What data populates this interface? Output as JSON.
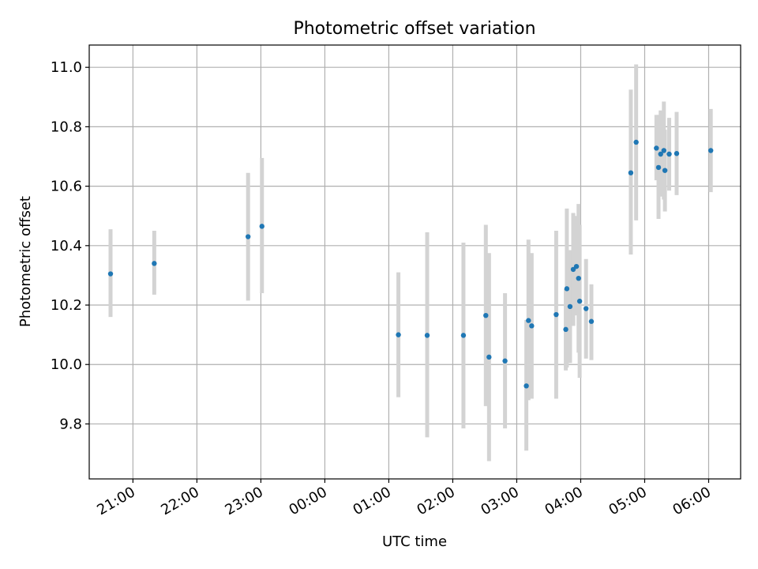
{
  "chart_data": {
    "type": "scatter",
    "title": "Photometric offset variation",
    "xlabel": "UTC time",
    "ylabel": "Photometric offset",
    "x_ticks": [
      "21:00",
      "22:00",
      "23:00",
      "00:00",
      "01:00",
      "02:00",
      "03:00",
      "04:00",
      "05:00",
      "06:00"
    ],
    "y_ticks": [
      "9.8",
      "10.0",
      "10.2",
      "10.4",
      "10.6",
      "10.8",
      "11.0"
    ],
    "xlim": [
      "20:19",
      "06:30"
    ],
    "ylim": [
      9.615,
      11.075
    ],
    "grid": true,
    "colors": {
      "marker": "#1f77b4",
      "errorbar": "#d3d3d3",
      "grid": "#b0b0b0"
    },
    "points": [
      {
        "x": "20:39",
        "y": 10.305,
        "err_low": 10.16,
        "err_high": 10.455
      },
      {
        "x": "21:20",
        "y": 10.34,
        "err_low": 10.235,
        "err_high": 10.45
      },
      {
        "x": "22:48",
        "y": 10.43,
        "err_low": 10.215,
        "err_high": 10.645
      },
      {
        "x": "23:01",
        "y": 10.465,
        "err_low": 10.24,
        "err_high": 10.695
      },
      {
        "x": "01:09",
        "y": 10.1,
        "err_low": 9.89,
        "err_high": 10.31
      },
      {
        "x": "01:36",
        "y": 10.098,
        "err_low": 9.755,
        "err_high": 10.445
      },
      {
        "x": "02:10",
        "y": 10.098,
        "err_low": 9.785,
        "err_high": 10.41
      },
      {
        "x": "02:31",
        "y": 10.165,
        "err_low": 9.86,
        "err_high": 10.47
      },
      {
        "x": "02:34",
        "y": 10.025,
        "err_low": 9.675,
        "err_high": 10.375
      },
      {
        "x": "02:49",
        "y": 10.012,
        "err_low": 9.785,
        "err_high": 10.24
      },
      {
        "x": "03:09",
        "y": 9.928,
        "err_low": 9.71,
        "err_high": 10.15
      },
      {
        "x": "03:11",
        "y": 10.148,
        "err_low": 9.88,
        "err_high": 10.42
      },
      {
        "x": "03:14",
        "y": 10.13,
        "err_low": 9.885,
        "err_high": 10.375
      },
      {
        "x": "03:37",
        "y": 10.168,
        "err_low": 9.885,
        "err_high": 10.45
      },
      {
        "x": "03:46",
        "y": 10.118,
        "err_low": 9.98,
        "err_high": 10.255
      },
      {
        "x": "03:47",
        "y": 10.255,
        "err_low": 9.99,
        "err_high": 10.525
      },
      {
        "x": "03:50",
        "y": 10.195,
        "err_low": 10.005,
        "err_high": 10.385
      },
      {
        "x": "03:53",
        "y": 10.32,
        "err_low": 10.13,
        "err_high": 10.51
      },
      {
        "x": "03:56",
        "y": 10.33,
        "err_low": 10.165,
        "err_high": 10.5
      },
      {
        "x": "03:58",
        "y": 10.29,
        "err_low": 10.04,
        "err_high": 10.54
      },
      {
        "x": "03:59",
        "y": 10.213,
        "err_low": 9.955,
        "err_high": 10.47
      },
      {
        "x": "04:05",
        "y": 10.188,
        "err_low": 10.02,
        "err_high": 10.355
      },
      {
        "x": "04:10",
        "y": 10.145,
        "err_low": 10.015,
        "err_high": 10.27
      },
      {
        "x": "04:47",
        "y": 10.645,
        "err_low": 10.37,
        "err_high": 10.925
      },
      {
        "x": "04:52",
        "y": 10.748,
        "err_low": 10.485,
        "err_high": 11.01
      },
      {
        "x": "05:11",
        "y": 10.728,
        "err_low": 10.62,
        "err_high": 10.84
      },
      {
        "x": "05:13",
        "y": 10.663,
        "err_low": 10.49,
        "err_high": 10.84
      },
      {
        "x": "05:15",
        "y": 10.708,
        "err_low": 10.565,
        "err_high": 10.855
      },
      {
        "x": "05:18",
        "y": 10.72,
        "err_low": 10.555,
        "err_high": 10.885
      },
      {
        "x": "05:19",
        "y": 10.653,
        "err_low": 10.515,
        "err_high": 10.79
      },
      {
        "x": "05:23",
        "y": 10.708,
        "err_low": 10.585,
        "err_high": 10.83
      },
      {
        "x": "05:30",
        "y": 10.71,
        "err_low": 10.57,
        "err_high": 10.85
      },
      {
        "x": "06:02",
        "y": 10.72,
        "err_low": 10.58,
        "err_high": 10.86
      }
    ]
  }
}
